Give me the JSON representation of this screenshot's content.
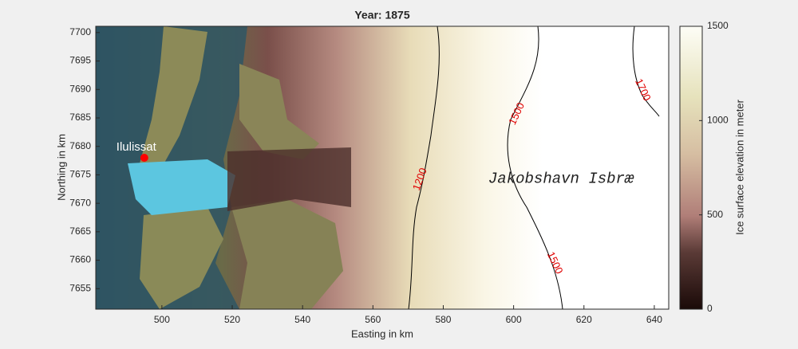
{
  "chart_data": {
    "type": "map",
    "title": "Year: 1875",
    "x_label": "Easting in km",
    "y_label": "Northing in km",
    "xlim": [
      481.2,
      644.1
    ],
    "ylim": [
      7651.4,
      7701.1
    ],
    "xticks": [
      500,
      520,
      540,
      560,
      580,
      600,
      620,
      640
    ],
    "yticks": [
      7655,
      7660,
      7665,
      7670,
      7675,
      7680,
      7685,
      7690,
      7695,
      7700
    ],
    "colorbar": {
      "label": "Ice surface elevation in meter",
      "lim": [
        0,
        1500
      ],
      "ticks": [
        0,
        500,
        1000,
        1500
      ]
    },
    "place": {
      "name": "Ilulissat",
      "x": 495,
      "y": 7678,
      "color": "#ff0000"
    },
    "annotations": [
      {
        "text": "Jakobshavn Isbræ",
        "x": 613.5,
        "y": 7674.3
      }
    ],
    "contour_label_color": "#e00000",
    "contours": [
      {
        "level": 1200,
        "x": 573.5,
        "y": 7674.2,
        "angle": -70
      },
      {
        "level": 1500,
        "x": 601,
        "y": 7685.7,
        "angle": -65
      },
      {
        "level": 1500,
        "x": 611.6,
        "y": 7659.5,
        "angle": 65
      },
      {
        "level": 1700,
        "x": 636.6,
        "y": 7689.9,
        "angle": 65
      }
    ]
  }
}
